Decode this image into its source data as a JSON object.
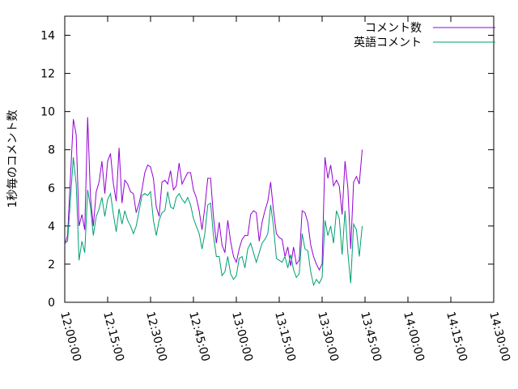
{
  "chart_data": {
    "type": "line",
    "title": "",
    "xlabel": "",
    "ylabel": "1秒毎のコメント数",
    "ylim": [
      0,
      15
    ],
    "yticks": [
      0,
      2,
      4,
      6,
      8,
      10,
      12,
      14
    ],
    "xlim": [
      "12:00:00",
      "14:30:00"
    ],
    "xticks": [
      "12:00:00",
      "12:15:00",
      "12:30:00",
      "12:45:00",
      "13:00:00",
      "13:15:00",
      "13:30:00",
      "13:45:00",
      "14:00:00",
      "14:15:00",
      "14:30:00"
    ],
    "legend_position": "top-right",
    "grid": false,
    "series": [
      {
        "name": "コメント数",
        "color": "#9400d3",
        "points": [
          [
            "12:00:00",
            3.0
          ],
          [
            "12:01:00",
            3.5
          ],
          [
            "12:03:00",
            9.6
          ],
          [
            "12:04:00",
            8.8
          ],
          [
            "12:05:00",
            4.0
          ],
          [
            "12:06:00",
            4.6
          ],
          [
            "12:07:00",
            3.8
          ],
          [
            "12:08:00",
            9.7
          ],
          [
            "12:09:00",
            5.5
          ],
          [
            "12:10:00",
            4.0
          ],
          [
            "12:11:00",
            5.8
          ],
          [
            "12:12:00",
            6.3
          ],
          [
            "12:13:00",
            7.4
          ],
          [
            "12:14:00",
            5.7
          ],
          [
            "12:15:00",
            7.4
          ],
          [
            "12:16:00",
            7.8
          ],
          [
            "12:17:00",
            6.2
          ],
          [
            "12:18:00",
            5.3
          ],
          [
            "12:19:00",
            8.1
          ],
          [
            "12:20:00",
            5.2
          ],
          [
            "12:21:00",
            6.4
          ],
          [
            "12:22:00",
            6.2
          ],
          [
            "12:23:00",
            5.8
          ],
          [
            "12:24:00",
            5.7
          ],
          [
            "12:25:00",
            4.7
          ],
          [
            "12:26:00",
            5.2
          ],
          [
            "12:27:00",
            5.9
          ],
          [
            "12:28:00",
            6.8
          ],
          [
            "12:29:00",
            7.2
          ],
          [
            "12:30:00",
            7.1
          ],
          [
            "12:31:00",
            6.5
          ],
          [
            "12:32:00",
            5.0
          ],
          [
            "12:33:00",
            4.5
          ],
          [
            "12:34:00",
            6.3
          ],
          [
            "12:35:00",
            6.4
          ],
          [
            "12:36:00",
            6.2
          ],
          [
            "12:37:00",
            6.9
          ],
          [
            "12:38:00",
            5.9
          ],
          [
            "12:39:00",
            6.1
          ],
          [
            "12:40:00",
            7.3
          ],
          [
            "12:41:00",
            6.2
          ],
          [
            "12:42:00",
            6.5
          ],
          [
            "12:43:00",
            6.8
          ],
          [
            "12:44:00",
            6.8
          ],
          [
            "12:45:00",
            5.9
          ],
          [
            "12:46:00",
            5.5
          ],
          [
            "12:47:00",
            4.8
          ],
          [
            "12:48:00",
            3.8
          ],
          [
            "12:49:00",
            5.0
          ],
          [
            "12:50:00",
            6.5
          ],
          [
            "12:51:00",
            6.5
          ],
          [
            "12:52:00",
            4.5
          ],
          [
            "12:53:00",
            3.1
          ],
          [
            "12:54:00",
            4.2
          ],
          [
            "12:55:00",
            3.0
          ],
          [
            "12:56:00",
            2.6
          ],
          [
            "12:57:00",
            4.3
          ],
          [
            "12:58:00",
            3.2
          ],
          [
            "12:59:00",
            2.4
          ],
          [
            "13:00:00",
            2.1
          ],
          [
            "13:01:00",
            2.8
          ],
          [
            "13:02:00",
            3.3
          ],
          [
            "13:03:00",
            3.5
          ],
          [
            "13:04:00",
            3.5
          ],
          [
            "13:05:00",
            4.6
          ],
          [
            "13:06:00",
            4.8
          ],
          [
            "13:07:00",
            4.7
          ],
          [
            "13:08:00",
            3.2
          ],
          [
            "13:09:00",
            4.2
          ],
          [
            "13:10:00",
            4.8
          ],
          [
            "13:11:00",
            5.3
          ],
          [
            "13:12:00",
            6.3
          ],
          [
            "13:13:00",
            4.8
          ],
          [
            "13:14:00",
            3.6
          ],
          [
            "13:15:00",
            3.4
          ],
          [
            "13:16:00",
            3.3
          ],
          [
            "13:17:00",
            2.4
          ],
          [
            "13:18:00",
            2.9
          ],
          [
            "13:19:00",
            1.9
          ],
          [
            "13:20:00",
            2.9
          ],
          [
            "13:21:00",
            2.0
          ],
          [
            "13:22:00",
            2.2
          ],
          [
            "13:23:00",
            4.8
          ],
          [
            "13:24:00",
            4.7
          ],
          [
            "13:25:00",
            4.2
          ],
          [
            "13:26:00",
            3.0
          ],
          [
            "13:27:00",
            2.4
          ],
          [
            "13:28:00",
            2.0
          ],
          [
            "13:29:00",
            1.7
          ],
          [
            "13:30:00",
            2.0
          ],
          [
            "13:31:00",
            7.6
          ],
          [
            "13:32:00",
            6.5
          ],
          [
            "13:33:00",
            7.2
          ],
          [
            "13:34:00",
            6.1
          ],
          [
            "13:35:00",
            6.4
          ],
          [
            "13:36:00",
            6.1
          ],
          [
            "13:37:00",
            4.6
          ],
          [
            "13:38:00",
            7.4
          ],
          [
            "13:39:00",
            6.0
          ],
          [
            "13:40:00",
            2.8
          ],
          [
            "13:41:00",
            6.3
          ],
          [
            "13:42:00",
            6.6
          ],
          [
            "13:43:00",
            6.2
          ],
          [
            "13:44:00",
            8.0
          ]
        ]
      },
      {
        "name": "英語コメント",
        "color": "#009e73",
        "points": [
          [
            "12:00:00",
            3.1
          ],
          [
            "12:01:00",
            3.2
          ],
          [
            "12:03:00",
            7.6
          ],
          [
            "12:04:00",
            6.2
          ],
          [
            "12:05:00",
            2.2
          ],
          [
            "12:06:00",
            3.2
          ],
          [
            "12:07:00",
            2.6
          ],
          [
            "12:08:00",
            5.9
          ],
          [
            "12:09:00",
            5.0
          ],
          [
            "12:10:00",
            3.5
          ],
          [
            "12:11:00",
            4.5
          ],
          [
            "12:12:00",
            4.9
          ],
          [
            "12:13:00",
            5.5
          ],
          [
            "12:14:00",
            4.5
          ],
          [
            "12:15:00",
            5.4
          ],
          [
            "12:16:00",
            5.7
          ],
          [
            "12:17:00",
            4.6
          ],
          [
            "12:18:00",
            3.7
          ],
          [
            "12:19:00",
            4.9
          ],
          [
            "12:20:00",
            4.1
          ],
          [
            "12:21:00",
            4.8
          ],
          [
            "12:22:00",
            4.3
          ],
          [
            "12:23:00",
            4.0
          ],
          [
            "12:24:00",
            3.6
          ],
          [
            "12:25:00",
            4.0
          ],
          [
            "12:26:00",
            4.8
          ],
          [
            "12:27:00",
            5.6
          ],
          [
            "12:28:00",
            5.7
          ],
          [
            "12:29:00",
            5.6
          ],
          [
            "12:30:00",
            5.8
          ],
          [
            "12:31:00",
            4.3
          ],
          [
            "12:32:00",
            3.5
          ],
          [
            "12:33:00",
            4.3
          ],
          [
            "12:34:00",
            4.7
          ],
          [
            "12:35:00",
            4.8
          ],
          [
            "12:36:00",
            5.8
          ],
          [
            "12:37:00",
            5.0
          ],
          [
            "12:38:00",
            4.9
          ],
          [
            "12:39:00",
            5.5
          ],
          [
            "12:40:00",
            5.7
          ],
          [
            "12:41:00",
            5.4
          ],
          [
            "12:42:00",
            5.2
          ],
          [
            "12:43:00",
            5.5
          ],
          [
            "12:44:00",
            5.1
          ],
          [
            "12:45:00",
            4.4
          ],
          [
            "12:46:00",
            4.0
          ],
          [
            "12:47:00",
            3.6
          ],
          [
            "12:48:00",
            2.8
          ],
          [
            "12:49:00",
            3.6
          ],
          [
            "12:50:00",
            5.1
          ],
          [
            "12:51:00",
            5.2
          ],
          [
            "12:52:00",
            3.5
          ],
          [
            "12:53:00",
            2.4
          ],
          [
            "12:54:00",
            2.4
          ],
          [
            "12:55:00",
            1.4
          ],
          [
            "12:56:00",
            1.6
          ],
          [
            "12:57:00",
            2.4
          ],
          [
            "12:58:00",
            1.5
          ],
          [
            "12:59:00",
            1.2
          ],
          [
            "13:00:00",
            1.4
          ],
          [
            "13:01:00",
            2.3
          ],
          [
            "13:02:00",
            2.4
          ],
          [
            "13:03:00",
            1.8
          ],
          [
            "13:04:00",
            2.8
          ],
          [
            "13:05:00",
            3.1
          ],
          [
            "13:06:00",
            2.6
          ],
          [
            "13:07:00",
            2.1
          ],
          [
            "13:08:00",
            2.6
          ],
          [
            "13:09:00",
            3.1
          ],
          [
            "13:10:00",
            3.3
          ],
          [
            "13:11:00",
            3.6
          ],
          [
            "13:12:00",
            5.1
          ],
          [
            "13:13:00",
            4.0
          ],
          [
            "13:14:00",
            2.3
          ],
          [
            "13:15:00",
            2.2
          ],
          [
            "13:16:00",
            2.1
          ],
          [
            "13:17:00",
            2.4
          ],
          [
            "13:18:00",
            1.8
          ],
          [
            "13:19:00",
            2.5
          ],
          [
            "13:20:00",
            1.7
          ],
          [
            "13:21:00",
            1.3
          ],
          [
            "13:22:00",
            1.5
          ],
          [
            "13:23:00",
            3.6
          ],
          [
            "13:24:00",
            2.8
          ],
          [
            "13:25:00",
            2.7
          ],
          [
            "13:26:00",
            1.6
          ],
          [
            "13:27:00",
            0.9
          ],
          [
            "13:28:00",
            1.2
          ],
          [
            "13:29:00",
            1.0
          ],
          [
            "13:30:00",
            1.3
          ],
          [
            "13:31:00",
            4.3
          ],
          [
            "13:32:00",
            3.5
          ],
          [
            "13:33:00",
            4.0
          ],
          [
            "13:34:00",
            3.1
          ],
          [
            "13:35:00",
            4.8
          ],
          [
            "13:36:00",
            4.4
          ],
          [
            "13:37:00",
            2.5
          ],
          [
            "13:38:00",
            4.8
          ],
          [
            "13:39:00",
            2.6
          ],
          [
            "13:40:00",
            1.0
          ],
          [
            "13:41:00",
            4.1
          ],
          [
            "13:42:00",
            3.8
          ],
          [
            "13:43:00",
            2.4
          ],
          [
            "13:44:00",
            4.0
          ]
        ]
      }
    ]
  }
}
